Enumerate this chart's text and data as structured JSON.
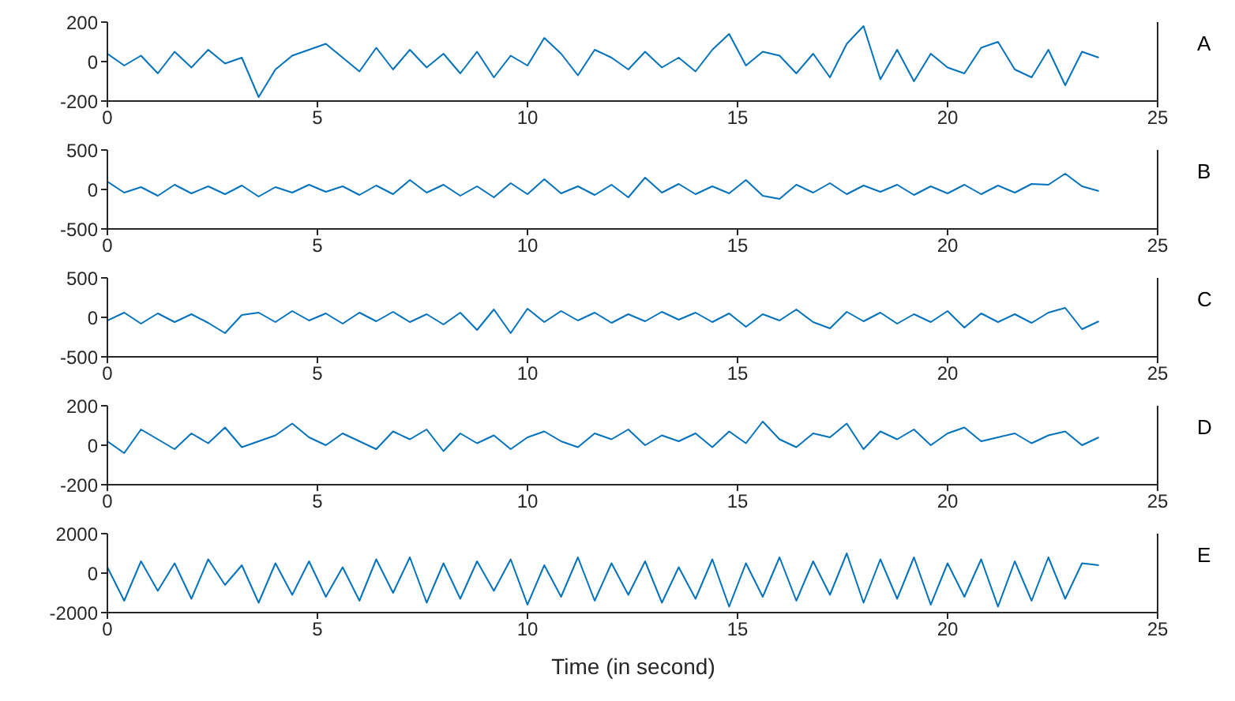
{
  "chart_data": [
    {
      "type": "line",
      "annotations": [
        "A"
      ],
      "x": [
        0,
        0.4,
        0.8,
        1.2,
        1.6,
        2,
        2.4,
        2.8,
        3.2,
        3.6,
        4,
        4.4,
        4.8,
        5.2,
        5.6,
        6,
        6.4,
        6.8,
        7.2,
        7.6,
        8,
        8.4,
        8.8,
        9.2,
        9.6,
        10,
        10.4,
        10.8,
        11.2,
        11.6,
        12,
        12.4,
        12.8,
        13.2,
        13.6,
        14,
        14.4,
        14.8,
        15.2,
        15.6,
        16,
        16.4,
        16.8,
        17.2,
        17.6,
        18,
        18.4,
        18.8,
        19.2,
        19.6,
        20,
        20.4,
        20.8,
        21.2,
        21.6,
        22,
        22.4,
        22.8,
        23.2,
        23.6
      ],
      "values": [
        40,
        -20,
        30,
        -60,
        50,
        -30,
        60,
        -10,
        20,
        -180,
        -40,
        30,
        60,
        90,
        20,
        -50,
        70,
        -40,
        60,
        -30,
        40,
        -60,
        50,
        -80,
        30,
        -20,
        120,
        40,
        -70,
        60,
        20,
        -40,
        50,
        -30,
        20,
        -50,
        60,
        140,
        -20,
        50,
        30,
        -60,
        40,
        -80,
        90,
        180,
        -90,
        60,
        -100,
        40,
        -30,
        -60,
        70,
        100,
        -40,
        -80,
        60,
        -120,
        50,
        20
      ],
      "color": "#0072bd",
      "xlim": [
        0,
        25
      ],
      "xticks": [
        0,
        5,
        10,
        15,
        20,
        25
      ],
      "ylim": [
        -200,
        200
      ],
      "yticks": [
        -200,
        0,
        200
      ],
      "grid": false,
      "legend": false
    },
    {
      "type": "line",
      "annotations": [
        "B"
      ],
      "x": [
        0,
        0.4,
        0.8,
        1.2,
        1.6,
        2,
        2.4,
        2.8,
        3.2,
        3.6,
        4,
        4.4,
        4.8,
        5.2,
        5.6,
        6,
        6.4,
        6.8,
        7.2,
        7.6,
        8,
        8.4,
        8.8,
        9.2,
        9.6,
        10,
        10.4,
        10.8,
        11.2,
        11.6,
        12,
        12.4,
        12.8,
        13.2,
        13.6,
        14,
        14.4,
        14.8,
        15.2,
        15.6,
        16,
        16.4,
        16.8,
        17.2,
        17.6,
        18,
        18.4,
        18.8,
        19.2,
        19.6,
        20,
        20.4,
        20.8,
        21.2,
        21.6,
        22,
        22.4,
        22.8,
        23.2,
        23.6
      ],
      "values": [
        100,
        -40,
        30,
        -80,
        60,
        -50,
        40,
        -60,
        50,
        -90,
        30,
        -40,
        60,
        -30,
        40,
        -70,
        50,
        -60,
        120,
        -40,
        60,
        -80,
        40,
        -100,
        80,
        -60,
        130,
        -50,
        40,
        -70,
        60,
        -100,
        150,
        -40,
        70,
        -60,
        40,
        -50,
        120,
        -80,
        -120,
        60,
        -40,
        80,
        -60,
        50,
        -30,
        60,
        -70,
        40,
        -50,
        60,
        -60,
        50,
        -40,
        70,
        60,
        200,
        40,
        -20
      ],
      "color": "#0072bd",
      "xlim": [
        0,
        25
      ],
      "xticks": [
        0,
        5,
        10,
        15,
        20,
        25
      ],
      "ylim": [
        -500,
        500
      ],
      "yticks": [
        -500,
        0,
        500
      ],
      "grid": false,
      "legend": false
    },
    {
      "type": "line",
      "annotations": [
        "C"
      ],
      "x": [
        0,
        0.4,
        0.8,
        1.2,
        1.6,
        2,
        2.4,
        2.8,
        3.2,
        3.6,
        4,
        4.4,
        4.8,
        5.2,
        5.6,
        6,
        6.4,
        6.8,
        7.2,
        7.6,
        8,
        8.4,
        8.8,
        9.2,
        9.6,
        10,
        10.4,
        10.8,
        11.2,
        11.6,
        12,
        12.4,
        12.8,
        13.2,
        13.6,
        14,
        14.4,
        14.8,
        15.2,
        15.6,
        16,
        16.4,
        16.8,
        17.2,
        17.6,
        18,
        18.4,
        18.8,
        19.2,
        19.6,
        20,
        20.4,
        20.8,
        21.2,
        21.6,
        22,
        22.4,
        22.8,
        23.2,
        23.6
      ],
      "values": [
        -40,
        60,
        -80,
        50,
        -60,
        40,
        -70,
        -200,
        30,
        60,
        -60,
        80,
        -40,
        50,
        -80,
        60,
        -50,
        70,
        -60,
        40,
        -90,
        60,
        -160,
        100,
        -200,
        110,
        -60,
        80,
        -40,
        60,
        -70,
        40,
        -50,
        70,
        -30,
        60,
        -60,
        50,
        -120,
        40,
        -40,
        100,
        -60,
        -140,
        70,
        -50,
        60,
        -80,
        40,
        -60,
        80,
        -130,
        50,
        -60,
        40,
        -70,
        60,
        120,
        -150,
        -50
      ],
      "color": "#0072bd",
      "xlim": [
        0,
        25
      ],
      "xticks": [
        0,
        5,
        10,
        15,
        20,
        25
      ],
      "ylim": [
        -500,
        500
      ],
      "yticks": [
        -500,
        0,
        500
      ],
      "grid": false,
      "legend": false
    },
    {
      "type": "line",
      "annotations": [
        "D"
      ],
      "x": [
        0,
        0.4,
        0.8,
        1.2,
        1.6,
        2,
        2.4,
        2.8,
        3.2,
        3.6,
        4,
        4.4,
        4.8,
        5.2,
        5.6,
        6,
        6.4,
        6.8,
        7.2,
        7.6,
        8,
        8.4,
        8.8,
        9.2,
        9.6,
        10,
        10.4,
        10.8,
        11.2,
        11.6,
        12,
        12.4,
        12.8,
        13.2,
        13.6,
        14,
        14.4,
        14.8,
        15.2,
        15.6,
        16,
        16.4,
        16.8,
        17.2,
        17.6,
        18,
        18.4,
        18.8,
        19.2,
        19.6,
        20,
        20.4,
        20.8,
        21.2,
        21.6,
        22,
        22.4,
        22.8,
        23.2,
        23.6
      ],
      "values": [
        20,
        -40,
        80,
        30,
        -20,
        60,
        10,
        90,
        -10,
        20,
        50,
        110,
        40,
        0,
        60,
        20,
        -20,
        70,
        30,
        80,
        -30,
        60,
        10,
        50,
        -20,
        40,
        70,
        20,
        -10,
        60,
        30,
        80,
        0,
        50,
        20,
        60,
        -10,
        70,
        10,
        120,
        30,
        -10,
        60,
        40,
        110,
        -20,
        70,
        30,
        80,
        0,
        60,
        90,
        20,
        40,
        60,
        10,
        50,
        70,
        0,
        40
      ],
      "color": "#0072bd",
      "xlim": [
        0,
        25
      ],
      "xticks": [
        0,
        5,
        10,
        15,
        20,
        25
      ],
      "ylim": [
        -200,
        200
      ],
      "yticks": [
        -200,
        0,
        200
      ],
      "grid": false,
      "legend": false
    },
    {
      "type": "line",
      "annotations": [
        "E"
      ],
      "xlabel": "Time (in second)",
      "x": [
        0,
        0.4,
        0.8,
        1.2,
        1.6,
        2,
        2.4,
        2.8,
        3.2,
        3.6,
        4,
        4.4,
        4.8,
        5.2,
        5.6,
        6,
        6.4,
        6.8,
        7.2,
        7.6,
        8,
        8.4,
        8.8,
        9.2,
        9.6,
        10,
        10.4,
        10.8,
        11.2,
        11.6,
        12,
        12.4,
        12.8,
        13.2,
        13.6,
        14,
        14.4,
        14.8,
        15.2,
        15.6,
        16,
        16.4,
        16.8,
        17.2,
        17.6,
        18,
        18.4,
        18.8,
        19.2,
        19.6,
        20,
        20.4,
        20.8,
        21.2,
        21.6,
        22,
        22.4,
        22.8,
        23.2,
        23.6
      ],
      "values": [
        300,
        -1400,
        600,
        -900,
        500,
        -1300,
        700,
        -600,
        400,
        -1500,
        500,
        -1100,
        600,
        -1200,
        300,
        -1400,
        700,
        -1000,
        800,
        -1500,
        500,
        -1300,
        600,
        -900,
        700,
        -1600,
        400,
        -1200,
        800,
        -1400,
        500,
        -1100,
        600,
        -1500,
        300,
        -1300,
        700,
        -1700,
        500,
        -1200,
        800,
        -1400,
        600,
        -1100,
        1000,
        -1500,
        700,
        -1300,
        800,
        -1600,
        500,
        -1200,
        700,
        -1700,
        600,
        -1400,
        800,
        -1300,
        500,
        400
      ],
      "color": "#0072bd",
      "xlim": [
        0,
        25
      ],
      "xticks": [
        0,
        5,
        10,
        15,
        20,
        25
      ],
      "ylim": [
        -2000,
        2000
      ],
      "yticks": [
        -2000,
        0,
        2000
      ],
      "grid": false,
      "legend": false
    }
  ]
}
